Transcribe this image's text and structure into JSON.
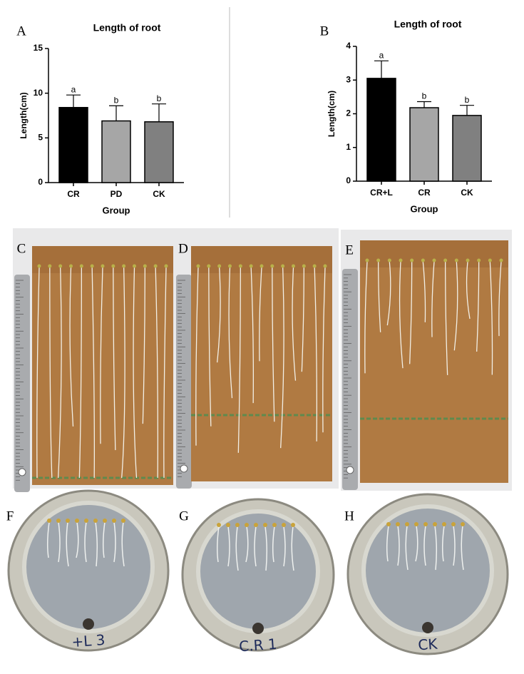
{
  "chart_data": [
    {
      "type": "bar",
      "panel_label": "A",
      "title": "Length of root",
      "xlabel": "Group",
      "ylabel": "Length(cm)",
      "categories": [
        "CR",
        "PD",
        "CK"
      ],
      "values": [
        8.4,
        6.9,
        6.8
      ],
      "errors": [
        1.4,
        1.7,
        2.0
      ],
      "annotations": [
        "a",
        "b",
        "b"
      ],
      "colors": [
        "#000000",
        "#a6a6a6",
        "#808080"
      ],
      "ylim": [
        0,
        15
      ],
      "yticks": [
        0,
        5,
        10,
        15
      ]
    },
    {
      "type": "bar",
      "panel_label": "B",
      "title": "Length of root",
      "xlabel": "Group",
      "ylabel": "Length(cm)",
      "categories": [
        "CR+L",
        "CR",
        "CK"
      ],
      "values": [
        3.05,
        2.18,
        1.95
      ],
      "errors": [
        0.52,
        0.18,
        0.3
      ],
      "annotations": [
        "a",
        "b",
        "b"
      ],
      "colors": [
        "#000000",
        "#a6a6a6",
        "#808080"
      ],
      "ylim": [
        0,
        4
      ],
      "yticks": [
        0,
        1,
        2,
        3,
        4
      ]
    }
  ],
  "photos": {
    "boards": [
      "C",
      "D",
      "E"
    ],
    "dishes": [
      {
        "label": "F",
        "marking": "+L 3"
      },
      {
        "label": "G",
        "marking": "C.R 1"
      },
      {
        "label": "H",
        "marking": "CK"
      }
    ]
  }
}
